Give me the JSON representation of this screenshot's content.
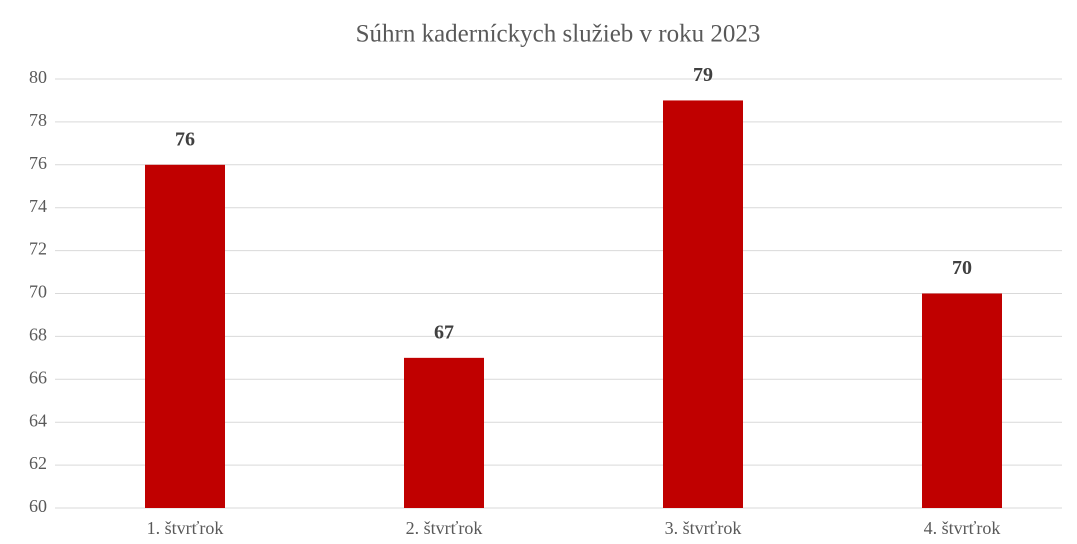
{
  "chart_data": {
    "type": "bar",
    "title": "Súhrn kaderníckych služieb v roku 2023",
    "categories": [
      "1. štvrťrok",
      "2. štvrťrok",
      "3. štvrťrok",
      "4. štvrťrok"
    ],
    "values": [
      76,
      67,
      79,
      70
    ],
    "color": "#c00000",
    "ylim": [
      60,
      80
    ],
    "yticks": [
      60,
      62,
      64,
      66,
      68,
      70,
      72,
      74,
      76,
      78,
      80
    ],
    "grid": true
  }
}
